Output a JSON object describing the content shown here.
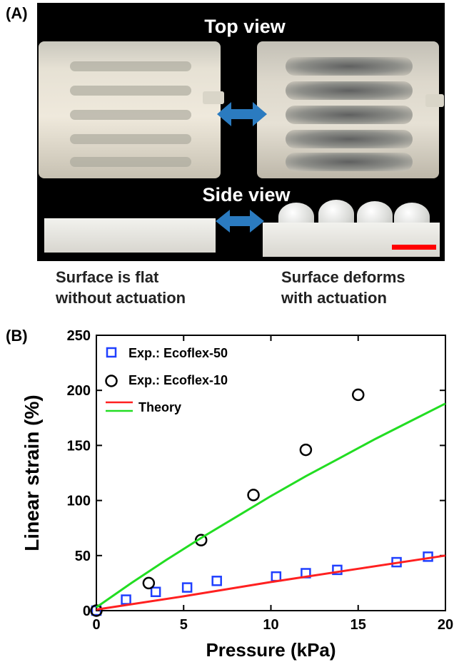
{
  "panel_a": {
    "label": "(A)",
    "top_view_title": "Top view",
    "side_view_title": "Side view",
    "caption_left": [
      "Surface is flat",
      "without actuation"
    ],
    "caption_right": [
      "Surface deforms",
      "with actuation"
    ],
    "colors": {
      "arrow": "#2b7bc0",
      "scale_bar": "#ff0000"
    }
  },
  "panel_b": {
    "label": "(B)"
  },
  "chart_data": {
    "type": "scatter",
    "xlabel": "Pressure  (kPa)",
    "ylabel": "Linear strain  (%)",
    "xlim": [
      0,
      20
    ],
    "ylim": [
      0,
      250
    ],
    "xticks": [
      0,
      5,
      10,
      15,
      20
    ],
    "yticks": [
      0,
      50,
      100,
      150,
      200,
      250
    ],
    "grid": false,
    "legend_placement": "top-left",
    "series": [
      {
        "name": "Exp.: Ecoflex-50",
        "marker": "square",
        "color": "#1f3fff",
        "points": [
          [
            0,
            0
          ],
          [
            1.7,
            10
          ],
          [
            3.4,
            17
          ],
          [
            5.2,
            21
          ],
          [
            6.9,
            27
          ],
          [
            10.3,
            31
          ],
          [
            12,
            34
          ],
          [
            13.8,
            37
          ],
          [
            17.2,
            44
          ],
          [
            19,
            49
          ]
        ]
      },
      {
        "name": "Exp.: Ecoflex-10",
        "marker": "circle",
        "color": "#000000",
        "points": [
          [
            0,
            0
          ],
          [
            3,
            25
          ],
          [
            6,
            64
          ],
          [
            9,
            105
          ],
          [
            12,
            146
          ],
          [
            15,
            196
          ]
        ]
      },
      {
        "name": "Theory",
        "type": "line",
        "color": "#ff2020",
        "points": [
          [
            0,
            1
          ],
          [
            5,
            13
          ],
          [
            10,
            26
          ],
          [
            15,
            38
          ],
          [
            20,
            50
          ]
        ]
      },
      {
        "name": "",
        "type": "line",
        "color": "#22dd22",
        "points": [
          [
            0,
            3
          ],
          [
            2,
            25
          ],
          [
            4,
            46
          ],
          [
            6,
            66
          ],
          [
            8,
            85
          ],
          [
            10,
            104
          ],
          [
            12,
            122
          ],
          [
            14,
            139
          ],
          [
            16,
            156
          ],
          [
            18,
            172
          ],
          [
            20,
            188
          ]
        ]
      }
    ],
    "legend": [
      {
        "label": "Exp.: Ecoflex-50",
        "symbol": "square",
        "color": "#1f3fff"
      },
      {
        "label": "Exp.: Ecoflex-10",
        "symbol": "circle",
        "color": "#000000"
      },
      {
        "label": "Theory",
        "symbol": "lines",
        "colors": [
          "#ff2020",
          "#22dd22"
        ]
      }
    ]
  }
}
